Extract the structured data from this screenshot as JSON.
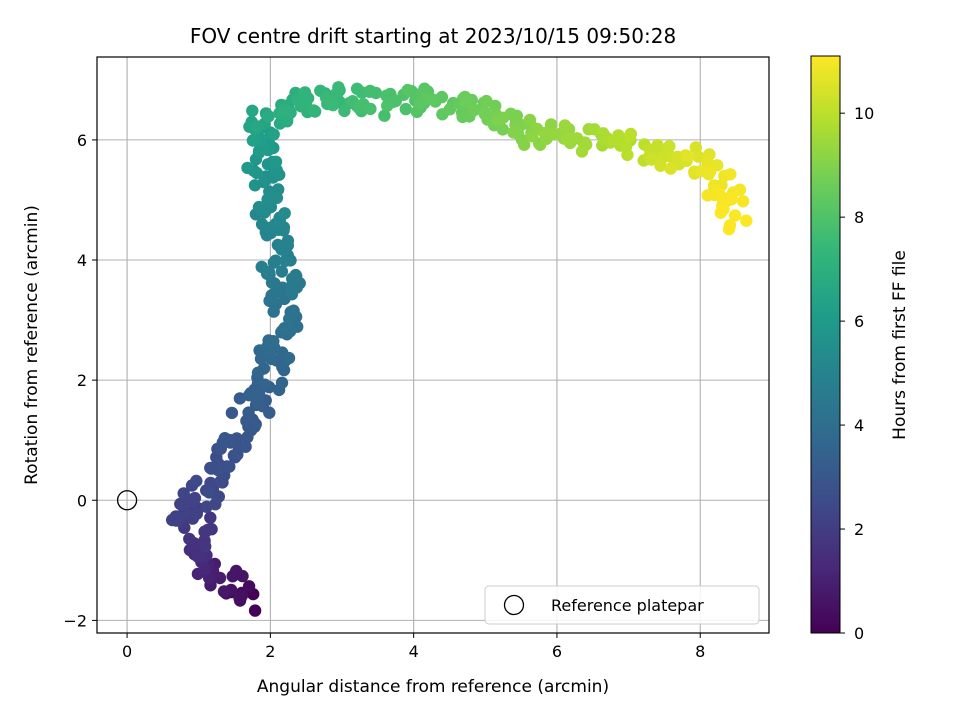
{
  "chart_data": {
    "type": "scatter",
    "title": "FOV centre drift starting at 2023/10/15 09:50:28",
    "xlabel": "Angular distance from reference (arcmin)",
    "ylabel": "Rotation from reference (arcmin)",
    "xlim": [
      -0.42,
      8.96
    ],
    "ylim": [
      -2.21,
      7.38
    ],
    "xticks": [
      0,
      2,
      4,
      6,
      8
    ],
    "yticks": [
      -2,
      0,
      2,
      4,
      6
    ],
    "grid": true,
    "colormap": "viridis",
    "colorbar": {
      "label": "Hours from first FF file",
      "min": 0,
      "max": 11.1,
      "ticks": [
        0,
        2,
        4,
        6,
        8,
        10
      ]
    },
    "legend": {
      "position": "lower-right",
      "entries": [
        "Reference platepar"
      ]
    },
    "reference_point": {
      "x": 0,
      "y": 0,
      "label": "Reference platepar"
    },
    "track": [
      {
        "x": 1.65,
        "y": -1.65,
        "t": 0.0
      },
      {
        "x": 1.5,
        "y": -1.55,
        "t": 0.4
      },
      {
        "x": 1.3,
        "y": -1.25,
        "t": 0.8
      },
      {
        "x": 1.15,
        "y": -1.05,
        "t": 1.2
      },
      {
        "x": 1.0,
        "y": -0.75,
        "t": 1.6
      },
      {
        "x": 0.95,
        "y": -0.3,
        "t": 1.9
      },
      {
        "x": 0.7,
        "y": -0.25,
        "t": 2.1
      },
      {
        "x": 1.0,
        "y": 0.0,
        "t": 2.3
      },
      {
        "x": 1.3,
        "y": 0.45,
        "t": 2.6
      },
      {
        "x": 1.3,
        "y": 0.85,
        "t": 2.8
      },
      {
        "x": 1.6,
        "y": 1.25,
        "t": 3.0
      },
      {
        "x": 1.9,
        "y": 1.7,
        "t": 3.3
      },
      {
        "x": 2.0,
        "y": 2.2,
        "t": 3.6
      },
      {
        "x": 2.1,
        "y": 2.7,
        "t": 3.9
      },
      {
        "x": 2.2,
        "y": 3.2,
        "t": 4.2
      },
      {
        "x": 2.2,
        "y": 3.6,
        "t": 4.5
      },
      {
        "x": 2.1,
        "y": 4.0,
        "t": 4.8
      },
      {
        "x": 2.0,
        "y": 4.6,
        "t": 5.1
      },
      {
        "x": 2.0,
        "y": 5.2,
        "t": 5.5
      },
      {
        "x": 1.85,
        "y": 5.8,
        "t": 6.0
      },
      {
        "x": 1.9,
        "y": 6.3,
        "t": 6.5
      },
      {
        "x": 2.3,
        "y": 6.6,
        "t": 7.0
      },
      {
        "x": 2.8,
        "y": 6.7,
        "t": 7.4
      },
      {
        "x": 3.5,
        "y": 6.6,
        "t": 7.8
      },
      {
        "x": 4.2,
        "y": 6.65,
        "t": 8.2
      },
      {
        "x": 4.9,
        "y": 6.55,
        "t": 8.6
      },
      {
        "x": 5.5,
        "y": 6.15,
        "t": 9.0
      },
      {
        "x": 6.2,
        "y": 6.05,
        "t": 9.4
      },
      {
        "x": 6.9,
        "y": 5.95,
        "t": 9.8
      },
      {
        "x": 7.4,
        "y": 5.8,
        "t": 10.2
      },
      {
        "x": 7.9,
        "y": 5.6,
        "t": 10.6
      },
      {
        "x": 8.3,
        "y": 5.3,
        "t": 10.9
      },
      {
        "x": 8.5,
        "y": 4.7,
        "t": 11.1
      }
    ],
    "sample_count": 460
  }
}
